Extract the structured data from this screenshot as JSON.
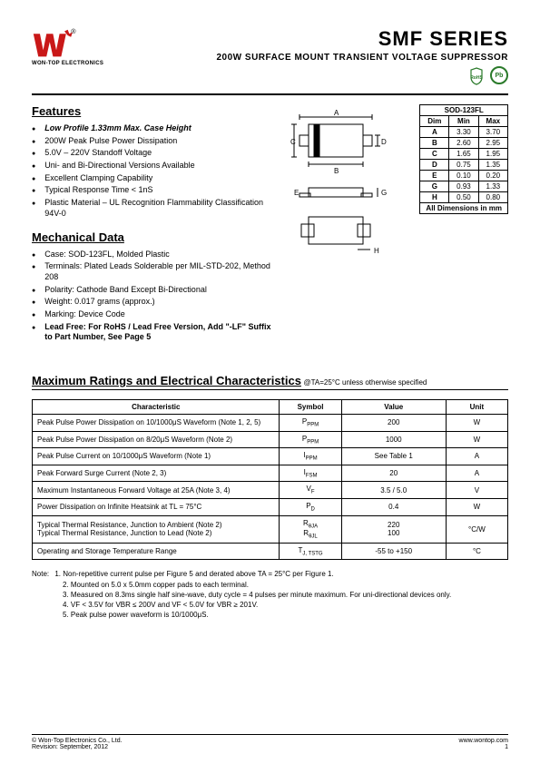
{
  "header": {
    "company": "WON-TOP ELECTRONICS",
    "title": "SMF  SERIES",
    "subtitle": "200W  SURFACE  MOUNT  TRANSIENT  VOLTAGE  SUPPRESSOR",
    "rohs_label": "RoHS",
    "pb_label": "Pb"
  },
  "features": {
    "title": "Features",
    "items": [
      {
        "text": "Low Profile 1.33mm Max. Case Height",
        "style": "bold-italic"
      },
      {
        "text": "200W Peak Pulse Power Dissipation"
      },
      {
        "text": "5.0V – 220V Standoff Voltage"
      },
      {
        "text": "Uni- and Bi-Directional Versions Available"
      },
      {
        "text": "Excellent Clamping Capability"
      },
      {
        "text": "Typical Response Time < 1nS"
      },
      {
        "text": "Plastic Material – UL Recognition Flammability Classification 94V-0"
      }
    ]
  },
  "mechanical": {
    "title": "Mechanical Data",
    "items": [
      {
        "text": "Case: SOD-123FL, Molded Plastic"
      },
      {
        "text": "Terminals: Plated Leads Solderable per MIL-STD-202, Method 208"
      },
      {
        "text": "Polarity: Cathode Band Except Bi-Directional"
      },
      {
        "text": "Weight: 0.017 grams (approx.)"
      },
      {
        "text": "Marking: Device Code"
      },
      {
        "text": "Lead Free: For RoHS / Lead Free Version, Add \"-LF\" Suffix to Part Number, See Page 5",
        "style": "bold"
      }
    ]
  },
  "dimensions": {
    "caption": "SOD-123FL",
    "headers": [
      "Dim",
      "Min",
      "Max"
    ],
    "rows": [
      [
        "A",
        "3.30",
        "3.70"
      ],
      [
        "B",
        "2.60",
        "2.95"
      ],
      [
        "C",
        "1.65",
        "1.95"
      ],
      [
        "D",
        "0.75",
        "1.35"
      ],
      [
        "E",
        "0.10",
        "0.20"
      ],
      [
        "G",
        "0.93",
        "1.33"
      ],
      [
        "H",
        "0.50",
        "0.80"
      ]
    ],
    "footer": "All Dimensions in mm"
  },
  "ratings": {
    "title": "Maximum Ratings and Electrical Characteristics",
    "condition": " @TA=25°C unless otherwise specified",
    "headers": [
      "Characteristic",
      "Symbol",
      "Value",
      "Unit"
    ],
    "rows": [
      {
        "char": "Peak Pulse Power Dissipation on 10/1000μS Waveform (Note 1, 2, 5)",
        "sym": "P",
        "sub": "PPM",
        "val": "200",
        "unit": "W"
      },
      {
        "char": "Peak Pulse Power Dissipation on 8/20μS Waveform (Note 2)",
        "sym": "P",
        "sub": "PPM",
        "val": "1000",
        "unit": "W"
      },
      {
        "char": "Peak Pulse Current on 10/1000μS Waveform (Note 1)",
        "sym": "I",
        "sub": "PPM",
        "val": "See Table 1",
        "unit": "A"
      },
      {
        "char": "Peak Forward Surge Current (Note 2, 3)",
        "sym": "I",
        "sub": "FSM",
        "val": "20",
        "unit": "A"
      },
      {
        "char": "Maximum Instantaneous Forward Voltage at 25A (Note 3, 4)",
        "sym": "V",
        "sub": "F",
        "val": "3.5 / 5.0",
        "unit": "V"
      },
      {
        "char": "Power Dissipation on Infinite Heatsink at TL = 75°C",
        "sym": "P",
        "sub": "D",
        "val": "0.4",
        "unit": "W"
      },
      {
        "char": "Typical Thermal Resistance, Junction to Ambient (Note 2)\nTypical Thermal Resistance, Junction to Lead (Note 2)",
        "sym": "R\nR",
        "sub": "θJA\nθJL",
        "val": "220\n100",
        "unit": "°C/W"
      },
      {
        "char": "Operating and Storage Temperature Range",
        "sym": "T",
        "sub": "J, TSTG",
        "val": "-55 to +150",
        "unit": "°C"
      }
    ]
  },
  "notes": {
    "label": "Note:",
    "items": [
      "1. Non-repetitive current pulse per Figure 5 and derated above TA = 25°C per Figure 1.",
      "2. Mounted on 5.0 x 5.0mm copper pads to each terminal.",
      "3. Measured on 8.3ms single half sine-wave, duty cycle = 4 pulses per minute maximum. For uni-directional devices only.",
      "4. VF < 3.5V for VBR ≤ 200V and VF < 5.0V for VBR ≥ 201V.",
      "5. Peak pulse power waveform is 10/1000μS."
    ]
  },
  "footer": {
    "copyright": "© Won-Top Electronics Co., Ltd.",
    "revision": "Revision: September, 2012",
    "url": "www.wontop.com",
    "page": "1"
  },
  "colors": {
    "text": "#000000",
    "green": "#2a7a2a",
    "logo_red": "#c91818"
  }
}
